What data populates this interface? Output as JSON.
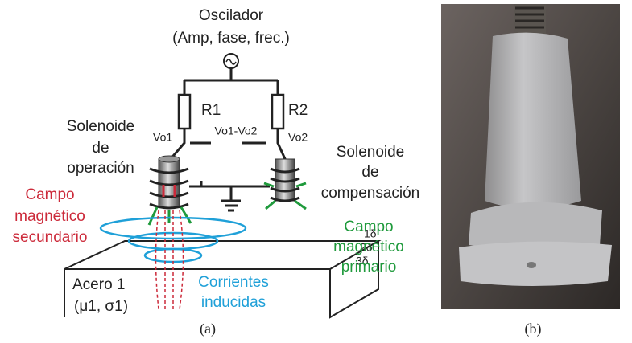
{
  "figure_a": {
    "oscillator": {
      "title": "Oscilador",
      "subtitle": "(Amp, fase, frec.)"
    },
    "resistors": [
      "R1",
      "R2"
    ],
    "voltages": [
      "Vo1",
      "Vo1-Vo2",
      "Vo2"
    ],
    "solenoid_operation": [
      "Solenoide",
      "de",
      "operación"
    ],
    "solenoid_compensation": [
      "Solenoide",
      "de",
      "compensación"
    ],
    "secondary_field": [
      "Campo",
      "magnético",
      "secundario"
    ],
    "primary_field": [
      "Campo",
      "magnético",
      "primario"
    ],
    "depths": [
      "1δ",
      "2δ",
      "3δ"
    ],
    "steel": [
      "Acero 1",
      "(μ1, σ1)"
    ],
    "currents": [
      "Corrientes",
      "inducidas"
    ],
    "caption": "(a)"
  },
  "figure_b": {
    "caption": "(b)"
  }
}
